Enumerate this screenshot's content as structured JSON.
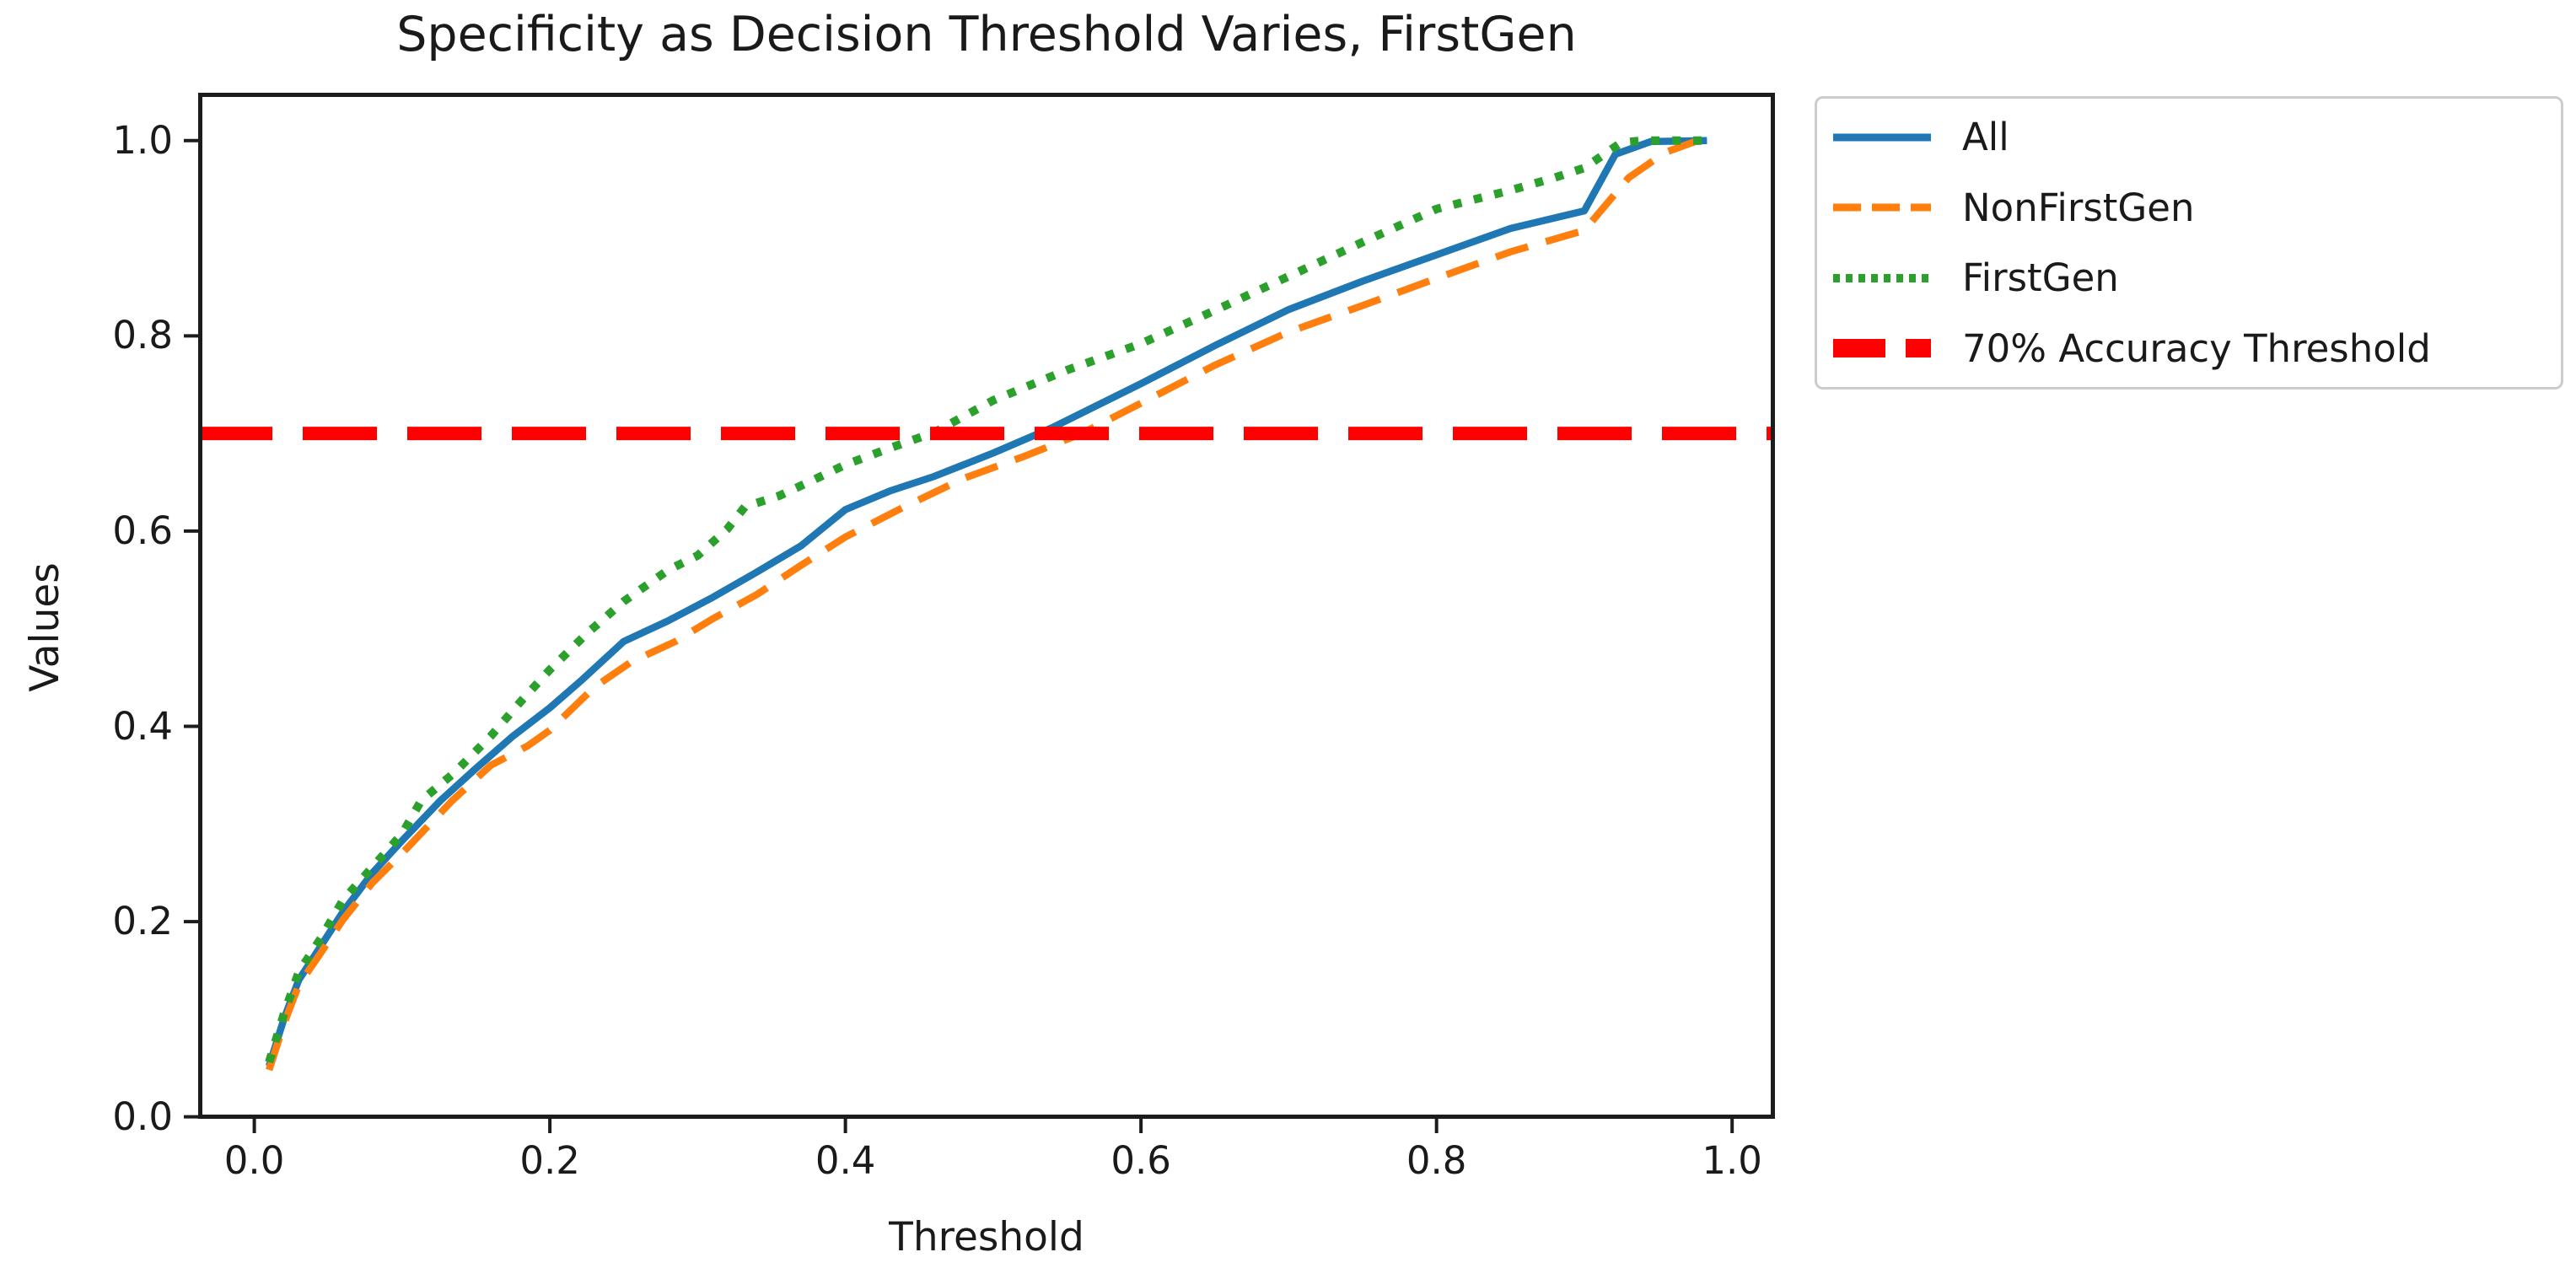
{
  "figure": {
    "title": "Specificity as Decision Threshold Varies, FirstGen",
    "xlabel": "Threshold",
    "ylabel": "Values"
  },
  "colors": {
    "all_line": "#1f77b4",
    "nonfirstgen_line": "#ff7f0e",
    "firstgen_line": "#2ca02c",
    "threshold_line": "#ff0000",
    "spine": "#1c1c1c",
    "text": "#1a1a1a",
    "legend_border": "#cccccc"
  },
  "legend": {
    "items": [
      {
        "label": "All",
        "color": "#1f77b4",
        "dash": null,
        "width": 9
      },
      {
        "label": "NonFirstGen",
        "color": "#ff7f0e",
        "dash": [
          33,
          13
        ],
        "width": 9
      },
      {
        "label": "FirstGen",
        "color": "#2ca02c",
        "dash": [
          8,
          7
        ],
        "width": 10
      },
      {
        "label": "70% Accuracy Threshold",
        "color": "#ff0000",
        "dash": [
          62,
          24
        ],
        "width": 22
      }
    ]
  },
  "chart_data": {
    "type": "line",
    "title": "Specificity as Decision Threshold Varies, FirstGen",
    "xlabel": "Threshold",
    "ylabel": "Values",
    "xlim": [
      -0.038,
      1.029
    ],
    "ylim": [
      -0.002,
      1.049
    ],
    "x_ticks": [
      0.0,
      0.2,
      0.4,
      0.6,
      0.8,
      1.0
    ],
    "x_tick_labels": [
      "0.0",
      "0.2",
      "0.4",
      "0.6",
      "0.8",
      "1.0"
    ],
    "y_ticks": [
      0.0,
      0.2,
      0.4,
      0.6,
      0.8,
      1.0
    ],
    "y_tick_labels": [
      "0.0",
      "0.2",
      "0.4",
      "0.6",
      "0.8",
      "1.0"
    ],
    "grid": false,
    "legend_position": "upper right, outside axes",
    "series": [
      {
        "name": "All",
        "color": "#1f77b4",
        "dash": null,
        "width": 8.5,
        "points": [
          [
            0.01,
            0.052
          ],
          [
            0.02,
            0.1
          ],
          [
            0.03,
            0.14
          ],
          [
            0.045,
            0.175
          ],
          [
            0.06,
            0.21
          ],
          [
            0.08,
            0.25
          ],
          [
            0.1,
            0.283
          ],
          [
            0.126,
            0.324
          ],
          [
            0.15,
            0.357
          ],
          [
            0.175,
            0.39
          ],
          [
            0.2,
            0.419
          ],
          [
            0.222,
            0.448
          ],
          [
            0.25,
            0.487
          ],
          [
            0.28,
            0.508
          ],
          [
            0.31,
            0.532
          ],
          [
            0.34,
            0.558
          ],
          [
            0.37,
            0.585
          ],
          [
            0.4,
            0.622
          ],
          [
            0.43,
            0.641
          ],
          [
            0.46,
            0.656
          ],
          [
            0.5,
            0.68
          ],
          [
            0.54,
            0.706
          ],
          [
            0.58,
            0.736
          ],
          [
            0.6,
            0.751
          ],
          [
            0.65,
            0.79
          ],
          [
            0.7,
            0.827
          ],
          [
            0.75,
            0.856
          ],
          [
            0.8,
            0.883
          ],
          [
            0.85,
            0.91
          ],
          [
            0.9,
            0.928
          ],
          [
            0.921,
            0.986
          ],
          [
            0.945,
            0.999
          ],
          [
            0.983,
            1.0
          ]
        ]
      },
      {
        "name": "NonFirstGen",
        "color": "#ff7f0e",
        "dash": [
          40,
          22
        ],
        "width": 8.5,
        "points": [
          [
            0.01,
            0.048
          ],
          [
            0.02,
            0.095
          ],
          [
            0.03,
            0.135
          ],
          [
            0.045,
            0.168
          ],
          [
            0.06,
            0.202
          ],
          [
            0.08,
            0.24
          ],
          [
            0.1,
            0.27
          ],
          [
            0.134,
            0.324
          ],
          [
            0.16,
            0.36
          ],
          [
            0.185,
            0.38
          ],
          [
            0.2,
            0.396
          ],
          [
            0.23,
            0.44
          ],
          [
            0.255,
            0.466
          ],
          [
            0.285,
            0.487
          ],
          [
            0.31,
            0.51
          ],
          [
            0.34,
            0.535
          ],
          [
            0.37,
            0.565
          ],
          [
            0.4,
            0.594
          ],
          [
            0.44,
            0.625
          ],
          [
            0.48,
            0.654
          ],
          [
            0.52,
            0.676
          ],
          [
            0.56,
            0.7
          ],
          [
            0.6,
            0.731
          ],
          [
            0.65,
            0.77
          ],
          [
            0.7,
            0.804
          ],
          [
            0.75,
            0.831
          ],
          [
            0.8,
            0.859
          ],
          [
            0.85,
            0.886
          ],
          [
            0.9,
            0.908
          ],
          [
            0.93,
            0.962
          ],
          [
            0.955,
            0.988
          ],
          [
            0.975,
            0.999
          ],
          [
            0.983,
            1.0
          ]
        ]
      },
      {
        "name": "FirstGen",
        "color": "#2ca02c",
        "dash": [
          10,
          15
        ],
        "width": 10,
        "points": [
          [
            0.01,
            0.056
          ],
          [
            0.02,
            0.105
          ],
          [
            0.03,
            0.148
          ],
          [
            0.045,
            0.183
          ],
          [
            0.06,
            0.222
          ],
          [
            0.08,
            0.256
          ],
          [
            0.1,
            0.29
          ],
          [
            0.113,
            0.324
          ],
          [
            0.135,
            0.352
          ],
          [
            0.16,
            0.39
          ],
          [
            0.18,
            0.425
          ],
          [
            0.2,
            0.458
          ],
          [
            0.225,
            0.495
          ],
          [
            0.25,
            0.528
          ],
          [
            0.28,
            0.56
          ],
          [
            0.3,
            0.575
          ],
          [
            0.32,
            0.602
          ],
          [
            0.332,
            0.625
          ],
          [
            0.355,
            0.636
          ],
          [
            0.375,
            0.65
          ],
          [
            0.4,
            0.668
          ],
          [
            0.43,
            0.685
          ],
          [
            0.46,
            0.701
          ],
          [
            0.5,
            0.734
          ],
          [
            0.55,
            0.765
          ],
          [
            0.6,
            0.792
          ],
          [
            0.65,
            0.826
          ],
          [
            0.7,
            0.861
          ],
          [
            0.75,
            0.896
          ],
          [
            0.8,
            0.93
          ],
          [
            0.85,
            0.949
          ],
          [
            0.88,
            0.962
          ],
          [
            0.9,
            0.972
          ],
          [
            0.925,
            0.998
          ],
          [
            0.94,
            1.0
          ],
          [
            0.983,
            1.0
          ]
        ]
      }
    ],
    "hline": {
      "y": 0.7,
      "label": "70% Accuracy Threshold",
      "color": "#ff0000",
      "dash": [
        88,
        36
      ],
      "width": 16
    }
  }
}
